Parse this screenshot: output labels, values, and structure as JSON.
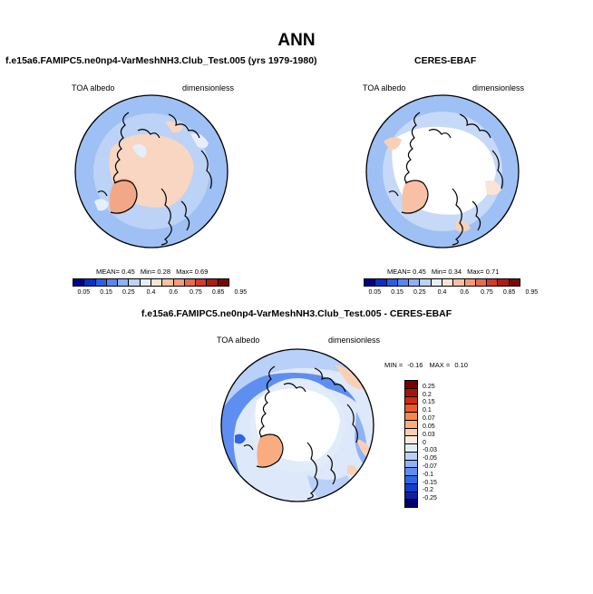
{
  "figure": {
    "title": "ANN",
    "panels": {
      "test": {
        "title": "f.e15a6.FAMIPC5.ne0np4-VarMeshNH3.Club_Test.005 (yrs 1979-1980)",
        "variable": "TOA albedo",
        "units": "dimensionless",
        "mean_label": "MEAN=",
        "mean": "0.45",
        "min_label": "Min=",
        "min": "0.28",
        "max_label": "Max=",
        "max": "0.69"
      },
      "obs": {
        "title": "CERES-EBAF",
        "variable": "TOA albedo",
        "units": "dimensionless",
        "mean_label": "MEAN=",
        "mean": "0.45",
        "min_label": "Min=",
        "min": "0.34",
        "max_label": "Max=",
        "max": "0.71"
      },
      "diff": {
        "title": "f.e15a6.FAMIPC5.ne0np4-VarMeshNH3.Club_Test.005 - CERES-EBAF",
        "variable": "TOA albedo",
        "units": "dimensionless",
        "min_label": "MIN =",
        "min": "-0.16",
        "max_label": "MAX =",
        "max": "0.10"
      }
    },
    "colorbar_abs": {
      "ticks": [
        "0.05",
        "0.15",
        "0.25",
        "0.4",
        "0.6",
        "0.75",
        "0.85",
        "0.95"
      ],
      "colors": [
        "#00008c",
        "#0a2fc8",
        "#2a5ee8",
        "#5a86f0",
        "#8fb0f4",
        "#bcd2f6",
        "#e6eefa",
        "#fbe4d6",
        "#f8c0a4",
        "#f39a78",
        "#e86a4c",
        "#d43a26",
        "#b01c12",
        "#7a0808"
      ]
    },
    "colorbar_diff": {
      "ticks": [
        "0.25",
        "0.2",
        "0.15",
        "0.1",
        "0.07",
        "0.05",
        "0.03",
        "0",
        "-0.03",
        "-0.05",
        "-0.07",
        "-0.1",
        "-0.15",
        "-0.2",
        "-0.25"
      ],
      "colors": [
        "#7a0000",
        "#a8120a",
        "#d02a14",
        "#ec5a2c",
        "#f8884c",
        "#f8ac80",
        "#fad0b4",
        "#fbe9dd",
        "#e1ecfa",
        "#b9d0f8",
        "#8fb2f4",
        "#5e8ef0",
        "#3066e6",
        "#0e3ed0",
        "#0a22a8",
        "#00006e"
      ]
    }
  }
}
